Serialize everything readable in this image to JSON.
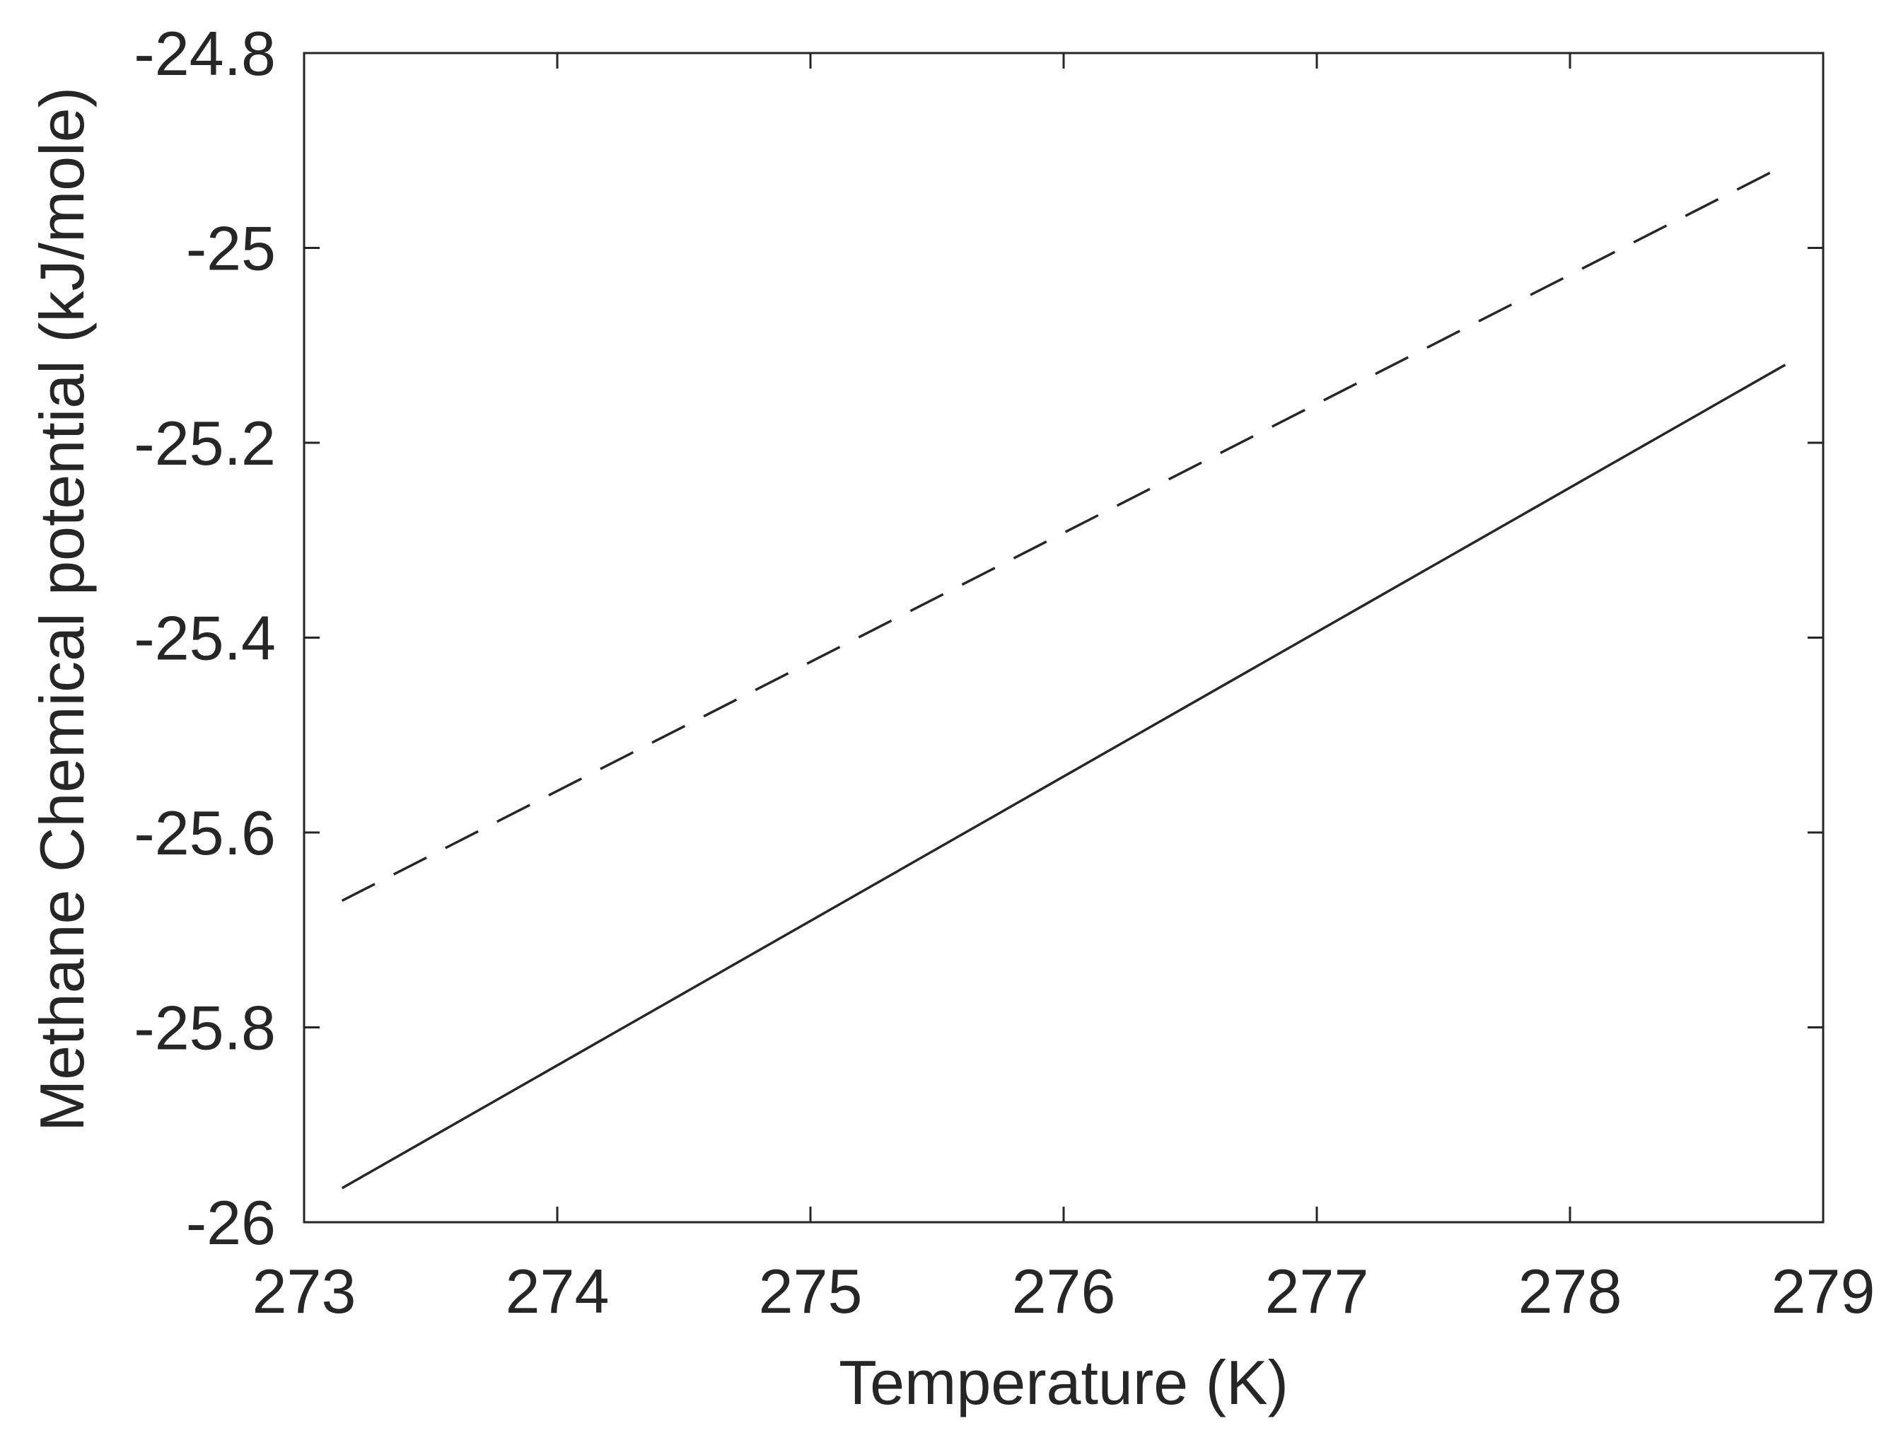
{
  "chart_data": {
    "type": "line",
    "title": "",
    "xlabel": "Temperature (K)",
    "ylabel": "Methane Chemical potential (kJ/mole)",
    "xlim": [
      273,
      279
    ],
    "ylim": [
      -26,
      -24.8
    ],
    "x_ticks": [
      273,
      274,
      275,
      276,
      277,
      278,
      279
    ],
    "x_tick_labels": [
      "273",
      "274",
      "275",
      "276",
      "277",
      "278",
      "279"
    ],
    "y_ticks": [
      -24.8,
      -25,
      -25.2,
      -25.4,
      -25.6,
      -25.8,
      -26
    ],
    "y_tick_labels": [
      "-24.8",
      "-25",
      "-25.2",
      "-25.4",
      "-25.6",
      "-25.8",
      "-26"
    ],
    "grid": false,
    "legend": false,
    "series": [
      {
        "line_style": "dashed",
        "color": "#262626",
        "x": [
          273.15,
          278.85
        ],
        "y": [
          -25.67,
          -24.915
        ]
      },
      {
        "line_style": "solid",
        "color": "#262626",
        "x": [
          273.15,
          278.85
        ],
        "y": [
          -25.965,
          -25.12
        ]
      }
    ]
  }
}
